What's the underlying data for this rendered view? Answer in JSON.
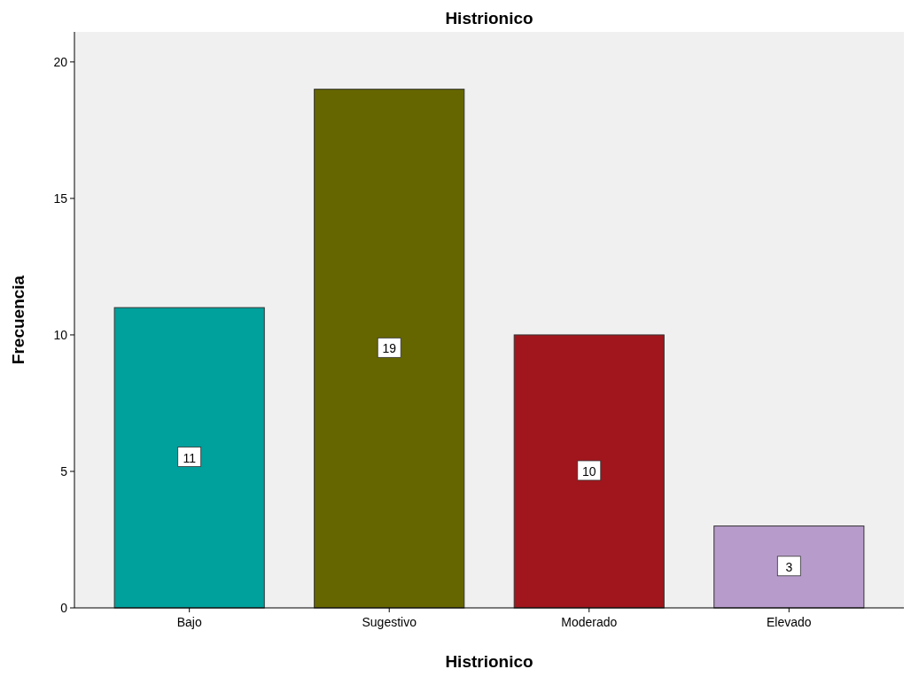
{
  "chart_data": {
    "type": "bar",
    "title": "Histrionico",
    "xlabel": "Histrionico",
    "ylabel": "Frecuencia",
    "categories": [
      "Bajo",
      "Sugestivo",
      "Moderado",
      "Elevado"
    ],
    "values": [
      11,
      19,
      10,
      3
    ],
    "colors": [
      "#00a09c",
      "#666600",
      "#a0161c",
      "#b79ccb"
    ],
    "ylim": [
      0,
      21.1
    ],
    "yticks": [
      0,
      5,
      10,
      15,
      20
    ],
    "data_labels": true
  }
}
